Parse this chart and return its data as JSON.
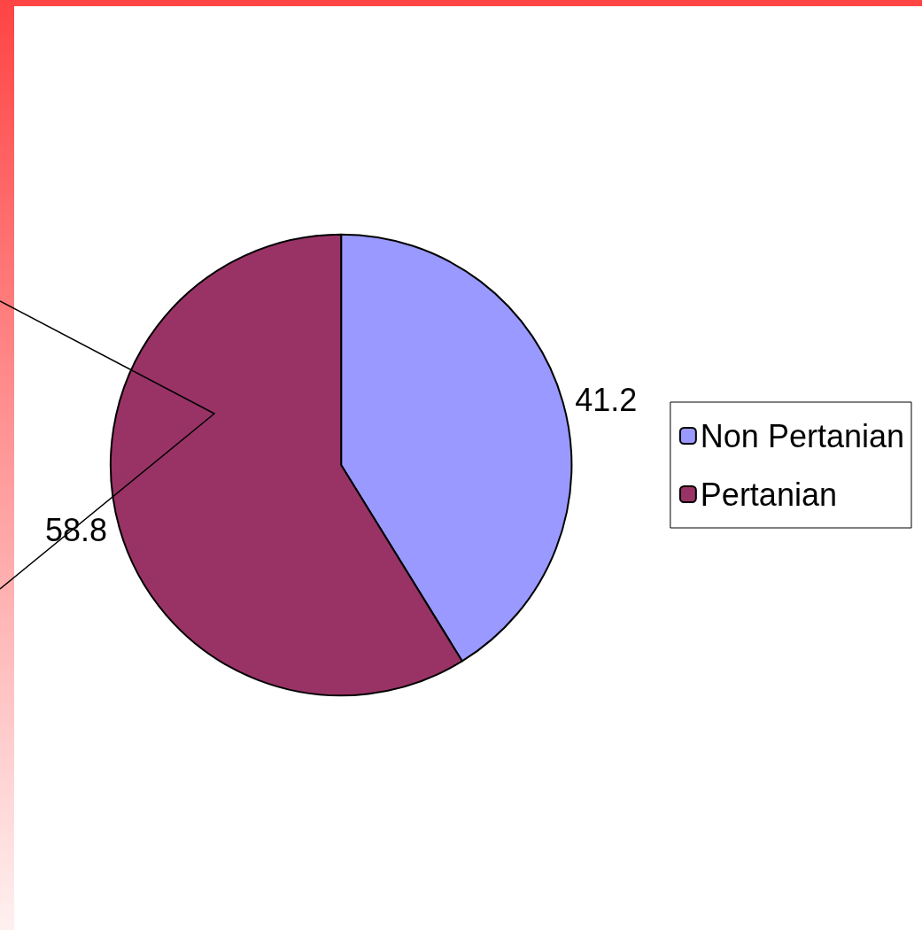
{
  "chart_data": {
    "type": "pie",
    "categories": [
      "Non Pertanian",
      "Pertanian"
    ],
    "values": [
      41.2,
      58.8
    ],
    "colors": [
      "#9999ff",
      "#993366"
    ],
    "data_labels": true,
    "legend": "right"
  }
}
